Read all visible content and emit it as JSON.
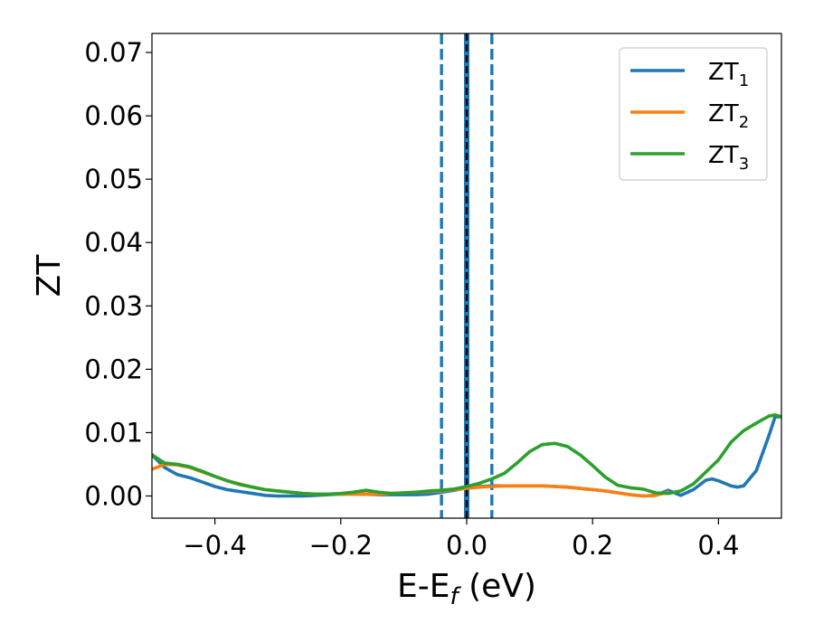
{
  "chart_data": {
    "type": "line",
    "title": "",
    "xlabel": "E-E",
    "xlabel_subscript": "f",
    "xlabel_unit": " (eV)",
    "ylabel": "ZT",
    "xlim": [
      -0.5,
      0.5
    ],
    "ylim": [
      -0.0035,
      0.073
    ],
    "xticks": [
      -0.4,
      -0.2,
      0.0,
      0.2,
      0.4
    ],
    "xtick_labels": [
      "−0.4",
      "−0.2",
      "0.0",
      "0.2",
      "0.4"
    ],
    "yticks": [
      0.0,
      0.01,
      0.02,
      0.03,
      0.04,
      0.05,
      0.06,
      0.07
    ],
    "ytick_labels": [
      "0.00",
      "0.01",
      "0.02",
      "0.03",
      "0.04",
      "0.05",
      "0.06",
      "0.07"
    ],
    "grid": false,
    "legend_position": "top-right",
    "vlines": [
      {
        "x": -0.04,
        "style": "dashed",
        "color": "#1f77b4"
      },
      {
        "x": 0.04,
        "style": "dashed",
        "color": "#1f77b4"
      },
      {
        "x": 0.0,
        "style": "solid",
        "color": "#1f77b4"
      },
      {
        "x": 0.0,
        "style": "dashed",
        "color": "#000000"
      }
    ],
    "series": [
      {
        "name": "ZT",
        "subscript": "1",
        "color": "#1f77b4",
        "x": [
          -0.5,
          -0.48,
          -0.46,
          -0.44,
          -0.42,
          -0.4,
          -0.38,
          -0.36,
          -0.34,
          -0.32,
          -0.3,
          -0.28,
          -0.26,
          -0.24,
          -0.22,
          -0.2,
          -0.18,
          -0.16,
          -0.14,
          -0.12,
          -0.1,
          -0.08,
          -0.06,
          -0.04,
          -0.02,
          0.0,
          0.02,
          0.04,
          0.06,
          0.08,
          0.1,
          0.12,
          0.14,
          0.16,
          0.18,
          0.2,
          0.22,
          0.24,
          0.26,
          0.28,
          0.3,
          0.32,
          0.33,
          0.34,
          0.36,
          0.38,
          0.39,
          0.4,
          0.42,
          0.43,
          0.44,
          0.46,
          0.48,
          0.49,
          0.5
        ],
        "values": [
          0.0065,
          0.0045,
          0.0034,
          0.0029,
          0.0022,
          0.0015,
          0.001,
          0.0007,
          0.0004,
          0.0001,
          0.0,
          0.0,
          0.0,
          0.0001,
          0.0002,
          0.0003,
          0.0003,
          0.0003,
          0.0002,
          0.0002,
          0.0002,
          0.0002,
          0.0003,
          0.0006,
          0.0009,
          0.0013,
          0.0015,
          0.0016,
          0.0016,
          0.0016,
          0.0016,
          0.0016,
          0.0015,
          0.0014,
          0.0012,
          0.001,
          0.0008,
          0.0005,
          0.0002,
          0.0,
          0.0001,
          0.0009,
          0.0005,
          0.0001,
          0.001,
          0.0025,
          0.0027,
          0.0024,
          0.0016,
          0.0014,
          0.0016,
          0.004,
          0.0095,
          0.0125,
          0.0125
        ]
      },
      {
        "name": "ZT",
        "subscript": "2",
        "color": "#ff7f0e",
        "x": [
          -0.5,
          -0.48,
          -0.46,
          -0.44,
          -0.42,
          -0.4,
          -0.38,
          -0.36,
          -0.34,
          -0.32,
          -0.3,
          -0.28,
          -0.26,
          -0.24,
          -0.22,
          -0.2,
          -0.18,
          -0.16,
          -0.14,
          -0.12,
          -0.1,
          -0.08,
          -0.06,
          -0.04,
          -0.02,
          0.0,
          0.02,
          0.04,
          0.06,
          0.08,
          0.1,
          0.12,
          0.14,
          0.16,
          0.18,
          0.2,
          0.22,
          0.24,
          0.26,
          0.28,
          0.3,
          0.32
        ],
        "values": [
          0.0042,
          0.005,
          0.0049,
          0.0045,
          0.0038,
          0.0031,
          0.0024,
          0.0019,
          0.0014,
          0.001,
          0.0008,
          0.0006,
          0.0004,
          0.0003,
          0.0003,
          0.0003,
          0.0003,
          0.0003,
          0.0003,
          0.0004,
          0.0005,
          0.0006,
          0.0007,
          0.0008,
          0.001,
          0.0012,
          0.0014,
          0.0015,
          0.0016,
          0.0016,
          0.0016,
          0.0016,
          0.0015,
          0.0014,
          0.0012,
          0.001,
          0.0008,
          0.0005,
          0.0002,
          0.0,
          0.0001,
          0.0006
        ]
      },
      {
        "name": "ZT",
        "subscript": "3",
        "color": "#2ca02c",
        "x": [
          -0.5,
          -0.48,
          -0.46,
          -0.44,
          -0.42,
          -0.4,
          -0.38,
          -0.36,
          -0.34,
          -0.32,
          -0.3,
          -0.28,
          -0.26,
          -0.24,
          -0.22,
          -0.2,
          -0.18,
          -0.16,
          -0.14,
          -0.12,
          -0.1,
          -0.08,
          -0.06,
          -0.04,
          -0.02,
          0.0,
          0.02,
          0.04,
          0.06,
          0.08,
          0.1,
          0.12,
          0.14,
          0.16,
          0.18,
          0.2,
          0.22,
          0.24,
          0.26,
          0.28,
          0.3,
          0.32,
          0.34,
          0.36,
          0.38,
          0.4,
          0.42,
          0.44,
          0.46,
          0.48,
          0.49,
          0.5
        ],
        "values": [
          0.0065,
          0.0052,
          0.005,
          0.0046,
          0.0039,
          0.0031,
          0.0024,
          0.0018,
          0.0014,
          0.001,
          0.0008,
          0.0006,
          0.0004,
          0.0003,
          0.0003,
          0.0004,
          0.0006,
          0.0009,
          0.0006,
          0.0004,
          0.0005,
          0.0006,
          0.0008,
          0.0009,
          0.0011,
          0.0015,
          0.002,
          0.0027,
          0.0036,
          0.0052,
          0.007,
          0.0081,
          0.0083,
          0.0078,
          0.0065,
          0.0048,
          0.003,
          0.0017,
          0.0013,
          0.0011,
          0.0005,
          0.0004,
          0.0008,
          0.0019,
          0.0038,
          0.0057,
          0.0085,
          0.0103,
          0.0115,
          0.0126,
          0.0128,
          0.0125
        ]
      }
    ]
  }
}
